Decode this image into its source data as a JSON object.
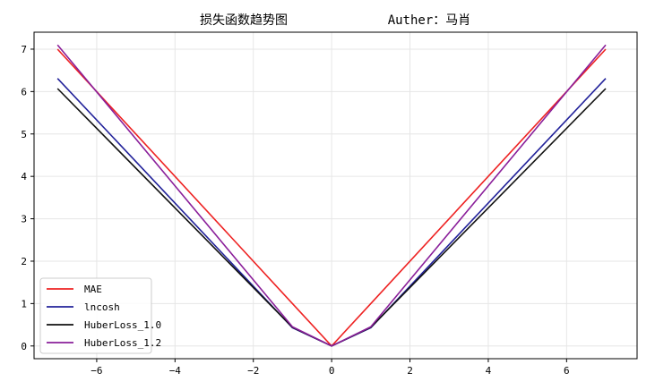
{
  "chart_data": {
    "type": "line",
    "title": "损失函数趋势图",
    "subtitle": "Auther：马肖",
    "xlim": [
      -7.6,
      7.8
    ],
    "ylim": [
      -0.3,
      7.4
    ],
    "xticks": [
      -6,
      -4,
      -2,
      0,
      2,
      4,
      6
    ],
    "xtick_labels": [
      "−6",
      "−4",
      "−2",
      "0",
      "2",
      "4",
      "6"
    ],
    "yticks": [
      0,
      1,
      2,
      3,
      4,
      5,
      6,
      7
    ],
    "ytick_labels": [
      "0",
      "1",
      "2",
      "3",
      "4",
      "5",
      "6",
      "7"
    ],
    "grid": true,
    "legend_position": "lower-left",
    "x": [
      -7,
      -1,
      0,
      1,
      7
    ],
    "series": [
      {
        "name": "MAE",
        "color": "#ee2222",
        "values": [
          7.0,
          1.0,
          0.0,
          1.0,
          7.0
        ]
      },
      {
        "name": "lncosh",
        "color": "#22229a",
        "values": [
          6.31,
          0.43,
          0.0,
          0.43,
          6.31
        ]
      },
      {
        "name": "HuberLoss_1.0",
        "color": "#111111",
        "values": [
          6.07,
          0.44,
          0.0,
          0.44,
          6.07
        ]
      },
      {
        "name": "HuberLoss_1.2",
        "color": "#8a1f9a",
        "values": [
          7.1,
          0.45,
          0.0,
          0.45,
          7.1
        ]
      }
    ]
  }
}
